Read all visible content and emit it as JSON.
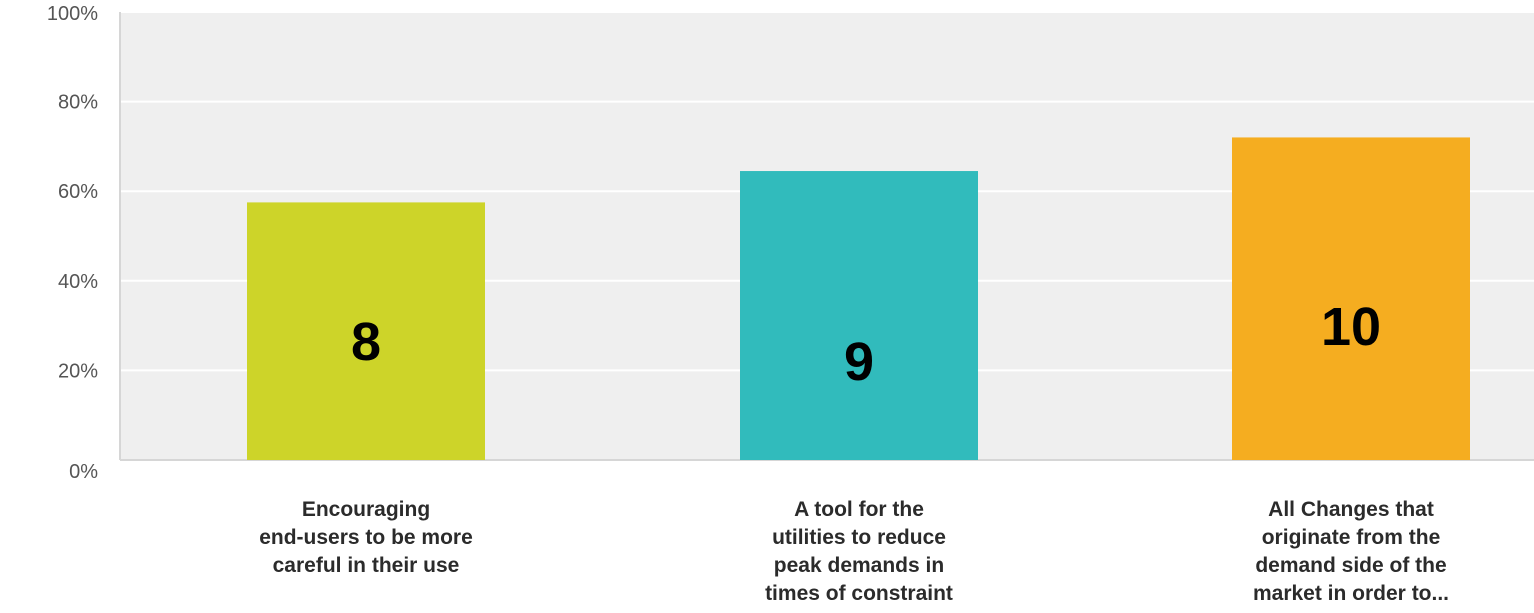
{
  "chart_data": {
    "type": "bar",
    "title": "",
    "xlabel": "",
    "ylabel": "",
    "ylim": [
      0,
      100
    ],
    "y_ticks": [
      "0%",
      "20%",
      "40%",
      "60%",
      "80%",
      "100%"
    ],
    "y_tick_values": [
      0,
      20,
      40,
      60,
      80,
      100
    ],
    "grid": true,
    "categories": [
      [
        "Encouraging",
        "end-users to be more",
        "careful in their use"
      ],
      [
        "A tool for the",
        "utilities to reduce",
        "peak demands in",
        "times of constraint"
      ],
      [
        "All Changes that",
        "originate from the",
        "demand side of the",
        "market in order to..."
      ]
    ],
    "values": [
      57.5,
      64.5,
      72
    ],
    "data_labels": [
      "8",
      "9",
      "10"
    ],
    "colors": [
      "#CDD429",
      "#31BBBC",
      "#F5AD20"
    ],
    "plot_background": "#EFEFEF",
    "gridline_color": "#FFFFFF"
  }
}
